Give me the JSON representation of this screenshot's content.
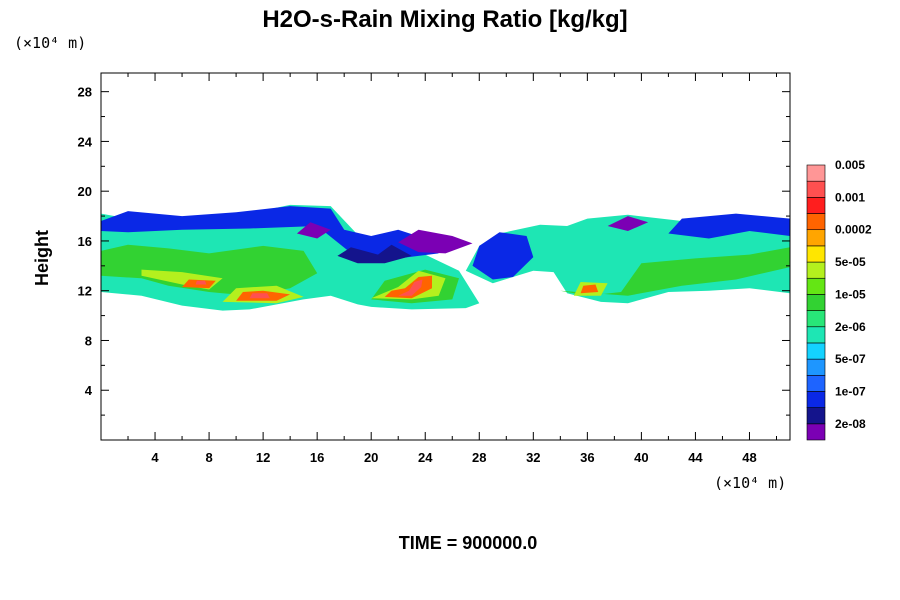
{
  "chart_data": {
    "type": "heatmap",
    "title": "H2O-s-Rain Mixing Ratio [kg/kg]",
    "ylabel": "Height",
    "xlabel": "",
    "x_unit": "(×10⁴ m)",
    "y_unit": "(×10⁴ m)",
    "xlim": [
      0,
      51
    ],
    "ylim": [
      0,
      29.5
    ],
    "x_ticks": [
      4,
      8,
      12,
      16,
      20,
      24,
      28,
      32,
      36,
      40,
      44,
      48
    ],
    "y_ticks": [
      4,
      8,
      12,
      16,
      20,
      24,
      28
    ],
    "time_label": "TIME = 900000.0",
    "legend": {
      "colors": [
        "#7b00b4",
        "#14148c",
        "#0a28e6",
        "#1e64ff",
        "#1e96ff",
        "#14d2ff",
        "#1ee6b4",
        "#28e678",
        "#32d232",
        "#64e614",
        "#b4f01e",
        "#ffe600",
        "#ffa500",
        "#ff6400",
        "#ff1e1e",
        "#ff5050",
        "#ff9696"
      ],
      "labels": [
        "2e-08",
        "1e-07",
        "5e-07",
        "2e-06",
        "1e-05",
        "5e-05",
        "0.0002",
        "0.001",
        "0.005"
      ]
    },
    "field_regions": [
      {
        "level": 6,
        "points": [
          [
            0,
            11.9
          ],
          [
            3,
            11.6
          ],
          [
            6,
            10.8
          ],
          [
            9,
            10.4
          ],
          [
            11,
            10.5
          ],
          [
            15,
            11.3
          ],
          [
            17,
            11.6
          ],
          [
            19,
            10.9
          ],
          [
            20,
            10.7
          ],
          [
            23,
            10.5
          ],
          [
            27,
            10.6
          ],
          [
            28,
            11.0
          ],
          [
            26.5,
            13.6
          ],
          [
            24,
            14.9
          ],
          [
            21,
            14.9
          ],
          [
            19,
            16.5
          ],
          [
            17,
            18.8
          ],
          [
            14,
            18.9
          ],
          [
            10,
            18.0
          ],
          [
            6,
            17.6
          ],
          [
            3,
            17.6
          ],
          [
            0,
            18.2
          ]
        ]
      },
      {
        "level": 6,
        "points": [
          [
            28,
            15.6
          ],
          [
            29.5,
            16.6
          ],
          [
            32.5,
            17.3
          ],
          [
            34.5,
            17.2
          ],
          [
            36,
            17.8
          ],
          [
            39,
            18.1
          ],
          [
            43,
            17.6
          ],
          [
            47,
            17.9
          ],
          [
            51,
            17.5
          ],
          [
            51,
            11.8
          ],
          [
            48,
            12.2
          ],
          [
            45,
            12.0
          ],
          [
            42,
            11.9
          ],
          [
            39,
            11.0
          ],
          [
            37,
            11.1
          ],
          [
            34.5,
            11.8
          ],
          [
            33.5,
            13.5
          ],
          [
            32,
            13.6
          ],
          [
            29,
            12.6
          ],
          [
            27,
            13.6
          ]
        ]
      },
      {
        "level": 2,
        "points": [
          [
            0,
            17.6
          ],
          [
            2,
            18.4
          ],
          [
            6,
            18.0
          ],
          [
            10,
            18.3
          ],
          [
            14,
            18.8
          ],
          [
            17,
            18.6
          ],
          [
            18,
            16.9
          ],
          [
            20,
            16.4
          ],
          [
            22,
            16.9
          ],
          [
            24,
            16.2
          ],
          [
            25,
            15.0
          ],
          [
            22,
            14.6
          ],
          [
            19,
            14.6
          ],
          [
            16,
            17.2
          ],
          [
            11,
            17.0
          ],
          [
            6,
            16.9
          ],
          [
            2,
            16.7
          ],
          [
            0,
            16.8
          ]
        ]
      },
      {
        "level": 1,
        "points": [
          [
            17.5,
            14.8
          ],
          [
            18.5,
            15.5
          ],
          [
            20.5,
            14.9
          ],
          [
            21.5,
            15.7
          ],
          [
            23,
            14.8
          ],
          [
            21,
            14.2
          ],
          [
            19,
            14.2
          ]
        ]
      },
      {
        "level": 0,
        "points": [
          [
            22,
            15.9
          ],
          [
            23.5,
            16.9
          ],
          [
            26,
            16.4
          ],
          [
            27.5,
            15.8
          ],
          [
            25.5,
            15.0
          ],
          [
            23.5,
            15.1
          ]
        ]
      },
      {
        "level": 2,
        "points": [
          [
            28,
            15.6
          ],
          [
            29.5,
            16.7
          ],
          [
            31.5,
            16.4
          ],
          [
            32,
            14.7
          ],
          [
            30.5,
            13.1
          ],
          [
            29,
            12.9
          ],
          [
            27.5,
            14.0
          ]
        ]
      },
      {
        "level": 2,
        "points": [
          [
            43,
            17.8
          ],
          [
            47,
            18.2
          ],
          [
            51,
            17.8
          ],
          [
            51,
            16.4
          ],
          [
            48,
            16.8
          ],
          [
            45,
            16.2
          ],
          [
            42,
            16.6
          ]
        ]
      },
      {
        "level": 0,
        "points": [
          [
            37.5,
            17.2
          ],
          [
            39,
            18.0
          ],
          [
            40.5,
            17.5
          ],
          [
            39,
            16.8
          ]
        ]
      },
      {
        "level": 0,
        "points": [
          [
            14.5,
            16.6
          ],
          [
            15.5,
            17.5
          ],
          [
            17,
            16.9
          ],
          [
            16,
            16.2
          ]
        ]
      },
      {
        "level": 8,
        "points": [
          [
            0,
            13.2
          ],
          [
            3,
            13.0
          ],
          [
            5,
            12.4
          ],
          [
            8,
            11.9
          ],
          [
            11,
            11.6
          ],
          [
            14,
            12.2
          ],
          [
            16,
            13.4
          ],
          [
            15,
            15.2
          ],
          [
            12,
            15.6
          ],
          [
            8,
            15.0
          ],
          [
            5,
            15.4
          ],
          [
            2,
            15.7
          ],
          [
            0,
            15.2
          ]
        ]
      },
      {
        "level": 8,
        "points": [
          [
            20,
            11.3
          ],
          [
            23,
            11.0
          ],
          [
            26,
            11.3
          ],
          [
            26.5,
            13.0
          ],
          [
            24,
            13.7
          ],
          [
            21,
            12.8
          ]
        ]
      },
      {
        "level": 8,
        "points": [
          [
            34,
            12.0
          ],
          [
            36,
            11.6
          ],
          [
            38.5,
            11.9
          ],
          [
            40,
            14.2
          ],
          [
            44,
            14.6
          ],
          [
            48,
            14.9
          ],
          [
            51,
            15.5
          ],
          [
            51,
            13.9
          ],
          [
            47,
            12.9
          ],
          [
            43,
            12.4
          ],
          [
            39,
            11.6
          ]
        ]
      },
      {
        "level": 10,
        "points": [
          [
            3,
            13.2
          ],
          [
            6,
            12.5
          ],
          [
            8,
            12.1
          ],
          [
            9,
            13.0
          ],
          [
            6,
            13.5
          ],
          [
            3,
            13.7
          ]
        ]
      },
      {
        "level": 10,
        "points": [
          [
            9,
            11.1
          ],
          [
            13,
            11.0
          ],
          [
            15,
            11.5
          ],
          [
            13,
            12.4
          ],
          [
            10,
            12.2
          ]
        ]
      },
      {
        "level": 10,
        "points": [
          [
            20,
            11.4
          ],
          [
            23,
            11.3
          ],
          [
            25,
            11.6
          ],
          [
            25.5,
            13.0
          ],
          [
            23.5,
            13.6
          ],
          [
            22,
            12.3
          ]
        ]
      },
      {
        "level": 10,
        "points": [
          [
            35,
            11.6
          ],
          [
            37,
            11.6
          ],
          [
            37.5,
            12.6
          ],
          [
            35.5,
            12.7
          ]
        ]
      },
      {
        "level": 13,
        "points": [
          [
            6,
            12.3
          ],
          [
            8,
            12.2
          ],
          [
            8.5,
            12.8
          ],
          [
            6.5,
            12.9
          ]
        ]
      },
      {
        "level": 13,
        "points": [
          [
            10,
            11.2
          ],
          [
            13,
            11.2
          ],
          [
            14,
            11.7
          ],
          [
            12,
            12.0
          ],
          [
            10.5,
            11.9
          ]
        ]
      },
      {
        "level": 13,
        "points": [
          [
            21,
            11.5
          ],
          [
            23,
            11.4
          ],
          [
            24.5,
            12.2
          ],
          [
            24.5,
            13.2
          ],
          [
            23.5,
            13.1
          ],
          [
            22.5,
            12.2
          ],
          [
            21.5,
            12.0
          ]
        ]
      },
      {
        "level": 13,
        "points": [
          [
            35.5,
            11.8
          ],
          [
            36.8,
            11.9
          ],
          [
            36.6,
            12.5
          ],
          [
            35.7,
            12.4
          ]
        ]
      },
      {
        "level": 15,
        "points": [
          [
            11,
            11.4
          ],
          [
            12.5,
            11.4
          ],
          [
            12.3,
            11.8
          ],
          [
            11.2,
            11.8
          ]
        ]
      },
      {
        "level": 15,
        "points": [
          [
            22,
            11.6
          ],
          [
            23,
            11.6
          ],
          [
            23.7,
            12.3
          ],
          [
            23.8,
            12.9
          ],
          [
            23.2,
            12.7
          ],
          [
            22.8,
            12.0
          ]
        ]
      },
      {
        "level": 15,
        "points": [
          [
            7,
            12.5
          ],
          [
            7.8,
            12.5
          ],
          [
            7.7,
            12.8
          ],
          [
            7.1,
            12.8
          ]
        ]
      }
    ]
  }
}
